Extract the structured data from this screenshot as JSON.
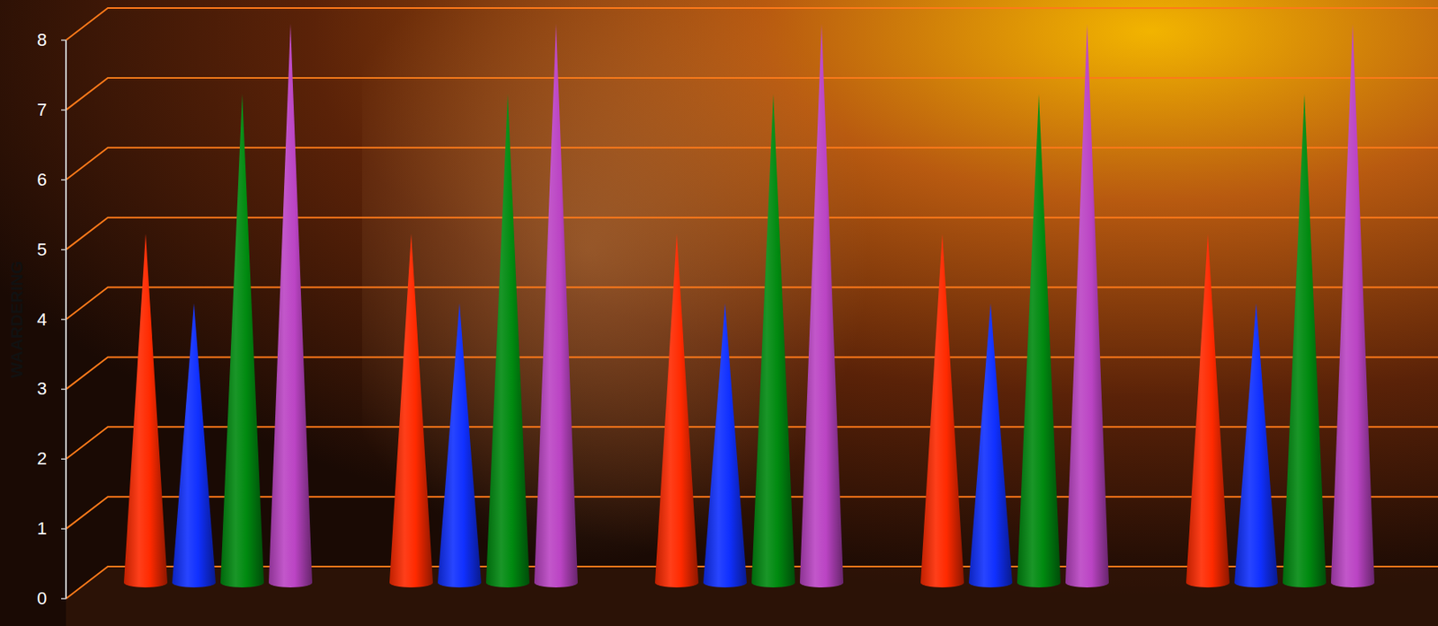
{
  "chart_data": {
    "type": "bar",
    "y_label": "WAARDERING",
    "categories": [
      null,
      null,
      null,
      null,
      null
    ],
    "series": [
      {
        "color": "#ff2a00",
        "values": [
          5,
          5,
          5,
          5,
          5
        ]
      },
      {
        "color": "#1030ff",
        "values": [
          4,
          4,
          4,
          4,
          4
        ]
      },
      {
        "color": "#008a10",
        "values": [
          7,
          7,
          7,
          7,
          7
        ]
      },
      {
        "color": "#bb44c4",
        "values": [
          8,
          8,
          8,
          8,
          8
        ]
      }
    ],
    "ylim": [
      0,
      8
    ],
    "yticks": [
      0,
      1,
      2,
      3,
      4,
      5,
      6,
      7,
      8
    ],
    "grid": true,
    "tick_labels": "y"
  }
}
